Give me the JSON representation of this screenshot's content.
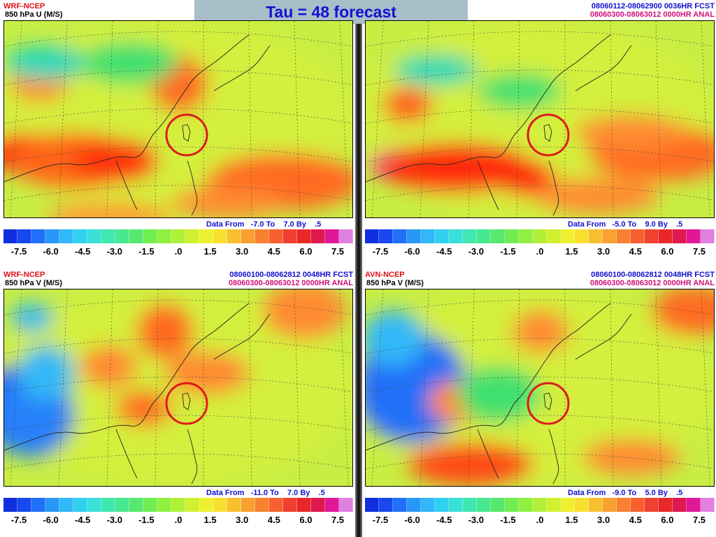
{
  "banner": {
    "title": "Tau = 48 forecast"
  },
  "panels": [
    {
      "model": "WRF-NCEP",
      "variable": "850 hPa U (M/S)",
      "fcst": "",
      "anal": "",
      "data_from_label": "Data From",
      "range_from": "-7.0",
      "to_label": "To",
      "range_to": "7.0",
      "by_label": "By",
      "step": ".5"
    },
    {
      "model": "",
      "variable": "",
      "fcst": "08060112-08062900 0036HR FCST",
      "anal": "08060300-08063012 0000HR ANAL",
      "data_from_label": "Data From",
      "range_from": "-5.0",
      "to_label": "To",
      "range_to": "9.0",
      "by_label": "By",
      "step": ".5"
    },
    {
      "model": "WRF-NCEP",
      "variable": "850 hPa V (M/S)",
      "fcst": "08060100-08062812 0048HR FCST",
      "anal": "08060300-08063012 0000HR ANAL",
      "data_from_label": "Data From",
      "range_from": "-11.0",
      "to_label": "To",
      "range_to": "7.0",
      "by_label": "By",
      "step": ".5"
    },
    {
      "model": "AVN-NCEP",
      "variable": "850 hPa V (M/S)",
      "fcst": "08060100-08062812 0048HR FCST",
      "anal": "08060300-08063012 0000HR ANAL",
      "data_from_label": "Data From",
      "range_from": "-9.0",
      "to_label": "To",
      "range_to": "5.0",
      "by_label": "By",
      "step": ".5"
    }
  ],
  "colorbar": {
    "ticks": [
      "-7.5",
      "-6.0",
      "-4.5",
      "-3.0",
      "-1.5",
      ".0",
      "1.5",
      "3.0",
      "4.5",
      "6.0",
      "7.5"
    ],
    "colors": [
      "#1030e0",
      "#1848f0",
      "#2070f8",
      "#2898f8",
      "#30b8f8",
      "#30d0f0",
      "#38e0d8",
      "#40e8b0",
      "#48e890",
      "#58e870",
      "#70ee50",
      "#90f040",
      "#b0f038",
      "#d0f030",
      "#eef030",
      "#f8e030",
      "#f8c030",
      "#f8a030",
      "#f88030",
      "#f86030",
      "#f04030",
      "#e82828",
      "#e01850",
      "#e01898",
      "#e080e0"
    ]
  },
  "highlight_color": "#dd1c1c"
}
